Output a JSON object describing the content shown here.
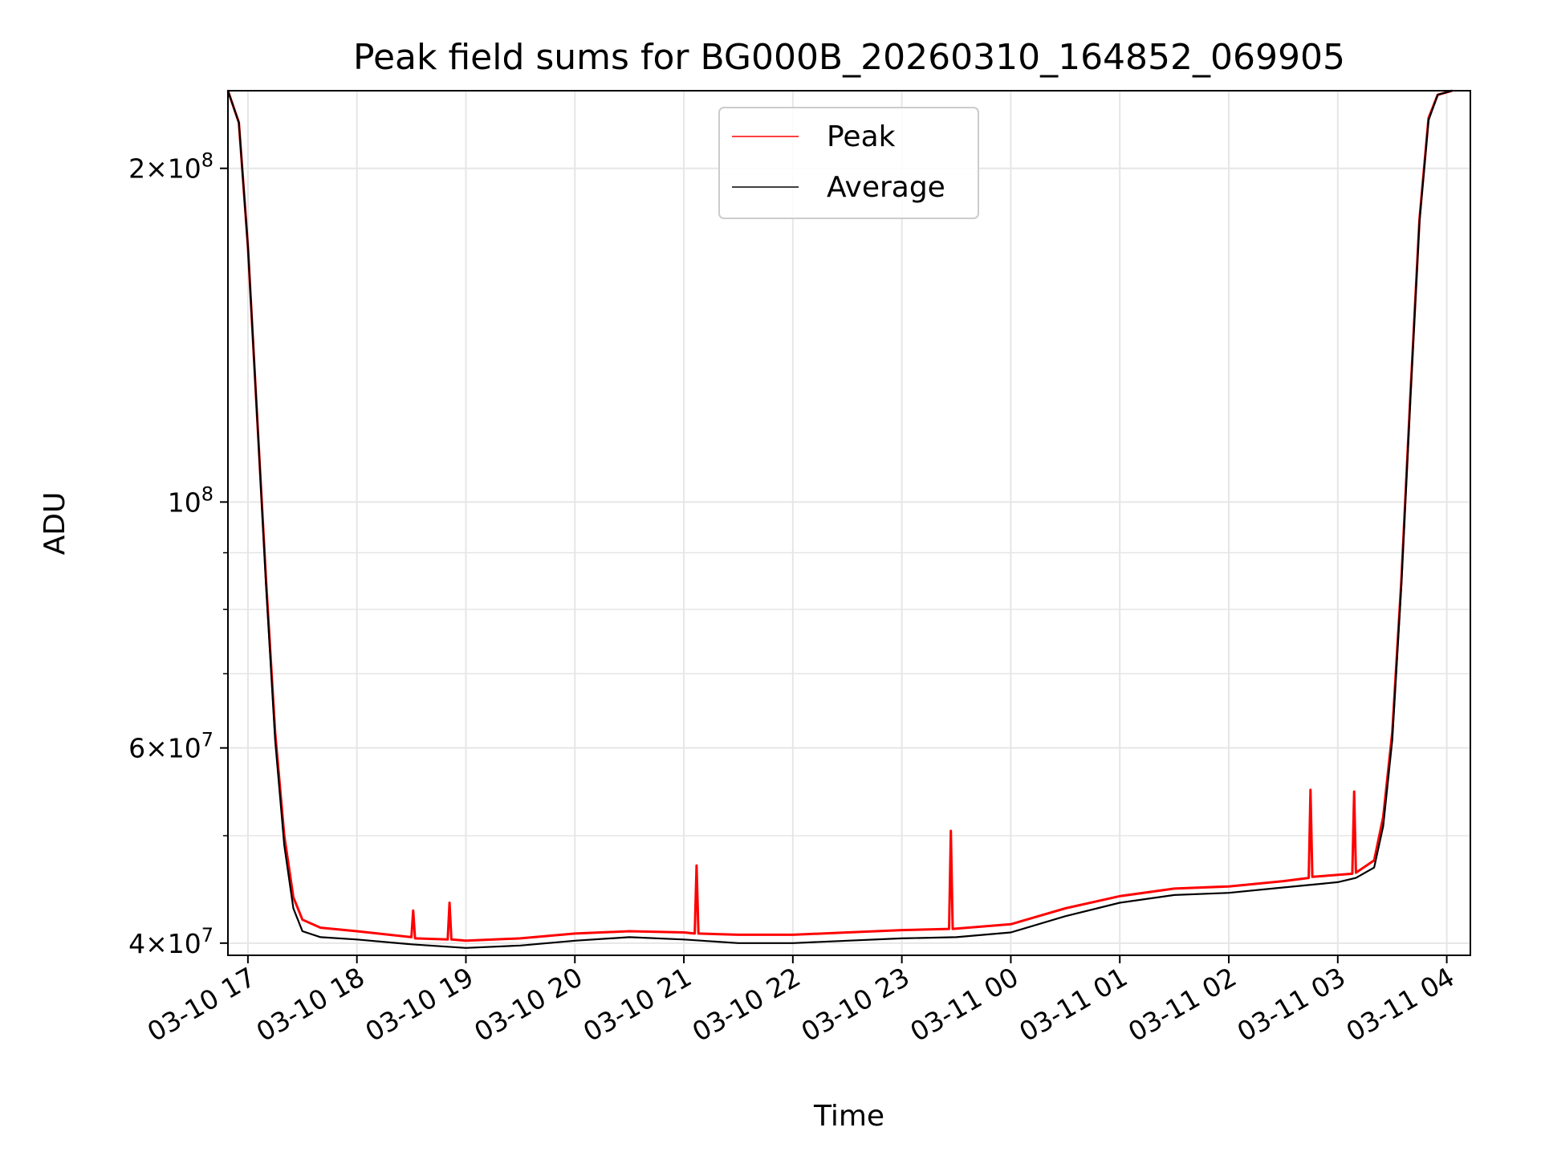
{
  "chart_data": {
    "type": "line",
    "title": "Peak field sums for BG000B_20260310_164852_069905",
    "xlabel": "Time",
    "ylabel": "ADU",
    "y_scale": "log",
    "ylim": [
      39000000,
      235000000
    ],
    "xlim": [
      "2026-03-10 16:49",
      "2026-03-11 04:13"
    ],
    "grid": true,
    "legend_position": "top-center",
    "x_ticks": [
      {
        "t": "2026-03-10 17:00",
        "label": "03-10 17"
      },
      {
        "t": "2026-03-10 18:00",
        "label": "03-10 18"
      },
      {
        "t": "2026-03-10 19:00",
        "label": "03-10 19"
      },
      {
        "t": "2026-03-10 20:00",
        "label": "03-10 20"
      },
      {
        "t": "2026-03-10 21:00",
        "label": "03-10 21"
      },
      {
        "t": "2026-03-10 22:00",
        "label": "03-10 22"
      },
      {
        "t": "2026-03-10 23:00",
        "label": "03-10 23"
      },
      {
        "t": "2026-03-11 00:00",
        "label": "03-11 00"
      },
      {
        "t": "2026-03-11 01:00",
        "label": "03-11 01"
      },
      {
        "t": "2026-03-11 02:00",
        "label": "03-11 02"
      },
      {
        "t": "2026-03-11 03:00",
        "label": "03-11 03"
      },
      {
        "t": "2026-03-11 04:00",
        "label": "03-11 04"
      }
    ],
    "y_ticks": [
      {
        "value": 40000000,
        "mantissa": "4",
        "exponent": "7"
      },
      {
        "value": 60000000,
        "mantissa": "6",
        "exponent": "7"
      },
      {
        "value": 100000000,
        "mantissa": "",
        "exponent": "8"
      },
      {
        "value": 200000000,
        "mantissa": "2",
        "exponent": "8"
      }
    ],
    "y_minor_ticks": [
      50000000,
      70000000,
      80000000,
      90000000
    ],
    "series": [
      {
        "name": "Peak",
        "color": "#ff0000",
        "points": [
          [
            "2026-03-10 16:49",
            235000000
          ],
          [
            "2026-03-10 16:55",
            220000000
          ],
          [
            "2026-03-10 17:00",
            170000000
          ],
          [
            "2026-03-10 17:05",
            120000000
          ],
          [
            "2026-03-10 17:10",
            85000000
          ],
          [
            "2026-03-10 17:15",
            62000000
          ],
          [
            "2026-03-10 17:20",
            50000000
          ],
          [
            "2026-03-10 17:25",
            44000000
          ],
          [
            "2026-03-10 17:30",
            42000000
          ],
          [
            "2026-03-10 17:40",
            41300000
          ],
          [
            "2026-03-10 18:00",
            41000000
          ],
          [
            "2026-03-10 18:30",
            40500000
          ],
          [
            "2026-03-10 18:31",
            42800000
          ],
          [
            "2026-03-10 18:32",
            40400000
          ],
          [
            "2026-03-10 18:50",
            40300000
          ],
          [
            "2026-03-10 18:51",
            43500000
          ],
          [
            "2026-03-10 18:52",
            40300000
          ],
          [
            "2026-03-10 19:00",
            40200000
          ],
          [
            "2026-03-10 19:30",
            40400000
          ],
          [
            "2026-03-10 20:00",
            40800000
          ],
          [
            "2026-03-10 20:30",
            41000000
          ],
          [
            "2026-03-10 21:00",
            40900000
          ],
          [
            "2026-03-10 21:06",
            40800000
          ],
          [
            "2026-03-10 21:07",
            47000000
          ],
          [
            "2026-03-10 21:08",
            40800000
          ],
          [
            "2026-03-10 21:30",
            40700000
          ],
          [
            "2026-03-10 22:00",
            40700000
          ],
          [
            "2026-03-10 22:30",
            40900000
          ],
          [
            "2026-03-10 23:00",
            41100000
          ],
          [
            "2026-03-10 23:26",
            41200000
          ],
          [
            "2026-03-10 23:27",
            50500000
          ],
          [
            "2026-03-10 23:28",
            41200000
          ],
          [
            "2026-03-11 00:00",
            41600000
          ],
          [
            "2026-03-11 00:30",
            43000000
          ],
          [
            "2026-03-11 01:00",
            44100000
          ],
          [
            "2026-03-11 01:30",
            44800000
          ],
          [
            "2026-03-11 02:00",
            45000000
          ],
          [
            "2026-03-11 02:30",
            45500000
          ],
          [
            "2026-03-11 02:44",
            45800000
          ],
          [
            "2026-03-11 02:45",
            55000000
          ],
          [
            "2026-03-11 02:46",
            45900000
          ],
          [
            "2026-03-11 03:08",
            46200000
          ],
          [
            "2026-03-11 03:09",
            54800000
          ],
          [
            "2026-03-11 03:10",
            46300000
          ],
          [
            "2026-03-11 03:20",
            47500000
          ],
          [
            "2026-03-11 03:25",
            52000000
          ],
          [
            "2026-03-11 03:30",
            62000000
          ],
          [
            "2026-03-11 03:35",
            85000000
          ],
          [
            "2026-03-11 03:40",
            125000000
          ],
          [
            "2026-03-11 03:45",
            180000000
          ],
          [
            "2026-03-11 03:50",
            222000000
          ],
          [
            "2026-03-11 03:55",
            233000000
          ],
          [
            "2026-03-11 04:03",
            235000000
          ]
        ]
      },
      {
        "name": "Average",
        "color": "#000000",
        "points": [
          [
            "2026-03-10 16:49",
            235000000
          ],
          [
            "2026-03-10 16:55",
            220000000
          ],
          [
            "2026-03-10 17:00",
            170000000
          ],
          [
            "2026-03-10 17:05",
            120000000
          ],
          [
            "2026-03-10 17:10",
            84000000
          ],
          [
            "2026-03-10 17:15",
            61000000
          ],
          [
            "2026-03-10 17:20",
            49000000
          ],
          [
            "2026-03-10 17:25",
            43000000
          ],
          [
            "2026-03-10 17:30",
            41000000
          ],
          [
            "2026-03-10 17:40",
            40500000
          ],
          [
            "2026-03-10 18:00",
            40300000
          ],
          [
            "2026-03-10 18:30",
            39900000
          ],
          [
            "2026-03-10 19:00",
            39600000
          ],
          [
            "2026-03-10 19:30",
            39800000
          ],
          [
            "2026-03-10 20:00",
            40200000
          ],
          [
            "2026-03-10 20:30",
            40500000
          ],
          [
            "2026-03-10 21:00",
            40300000
          ],
          [
            "2026-03-10 21:30",
            40000000
          ],
          [
            "2026-03-10 22:00",
            40000000
          ],
          [
            "2026-03-10 22:30",
            40200000
          ],
          [
            "2026-03-10 23:00",
            40400000
          ],
          [
            "2026-03-10 23:30",
            40500000
          ],
          [
            "2026-03-11 00:00",
            40900000
          ],
          [
            "2026-03-11 00:30",
            42300000
          ],
          [
            "2026-03-11 01:00",
            43500000
          ],
          [
            "2026-03-11 01:30",
            44200000
          ],
          [
            "2026-03-11 02:00",
            44400000
          ],
          [
            "2026-03-11 02:30",
            44900000
          ],
          [
            "2026-03-11 03:00",
            45400000
          ],
          [
            "2026-03-11 03:10",
            45800000
          ],
          [
            "2026-03-11 03:20",
            46800000
          ],
          [
            "2026-03-11 03:25",
            51000000
          ],
          [
            "2026-03-11 03:30",
            61000000
          ],
          [
            "2026-03-11 03:35",
            84000000
          ],
          [
            "2026-03-11 03:40",
            124000000
          ],
          [
            "2026-03-11 03:45",
            179000000
          ],
          [
            "2026-03-11 03:50",
            221000000
          ],
          [
            "2026-03-11 03:55",
            233000000
          ],
          [
            "2026-03-11 04:03",
            235000000
          ]
        ]
      }
    ]
  }
}
